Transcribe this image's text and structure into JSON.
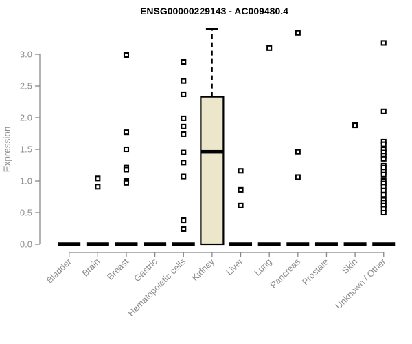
{
  "title": "ENSG00000229143 - AC009480.4",
  "colors": {
    "background": "#ffffff",
    "title_text": "#000000",
    "axis_line": "#888888",
    "axis_label_text": "#8c8c8c",
    "box_fill": "#ece7cb",
    "box_border": "#000000",
    "median_line": "#000000",
    "zero_dash": "#000000",
    "point_border": "#000000",
    "point_fill": "#ffffff"
  },
  "chart_data": {
    "type": "boxplot",
    "title": "ENSG00000229143 - AC009480.4",
    "xlabel": "",
    "ylabel": "Expression",
    "ylim": [
      0.0,
      3.4
    ],
    "yticks": [
      0.0,
      0.5,
      1.0,
      1.5,
      2.0,
      2.5,
      3.0
    ],
    "grid": false,
    "legend": "none",
    "categories": [
      "Bladder",
      "Brain",
      "Breast",
      "Gastric",
      "Hematopoietic cells",
      "Kidney",
      "Liver",
      "Lung",
      "Pancreas",
      "Prostate",
      "Skin",
      "Unknown / Other"
    ],
    "series": [
      {
        "label": "Bladder",
        "box": {
          "q1": 0,
          "median": 0,
          "q3": 0,
          "whisker_low": 0,
          "whisker_high": 0
        },
        "points": []
      },
      {
        "label": "Brain",
        "box": {
          "q1": 0,
          "median": 0,
          "q3": 0,
          "whisker_low": 0,
          "whisker_high": 0
        },
        "points": [
          1.04,
          0.91
        ]
      },
      {
        "label": "Breast",
        "box": {
          "q1": 0,
          "median": 0,
          "q3": 0,
          "whisker_low": 0,
          "whisker_high": 0
        },
        "points": [
          2.99,
          1.77,
          1.5,
          1.21,
          1.18,
          1.0,
          0.97
        ]
      },
      {
        "label": "Gastric",
        "box": {
          "q1": 0,
          "median": 0,
          "q3": 0,
          "whisker_low": 0,
          "whisker_high": 0
        },
        "points": []
      },
      {
        "label": "Hematopoietic cells",
        "box": {
          "q1": 0,
          "median": 0,
          "q3": 0,
          "whisker_low": 0,
          "whisker_high": 0
        },
        "points": [
          2.88,
          2.58,
          2.37,
          1.99,
          1.86,
          1.74,
          1.45,
          1.29,
          1.07,
          0.38,
          0.24
        ]
      },
      {
        "label": "Kidney",
        "box": {
          "q1": 0,
          "median": 1.46,
          "q3": 2.33,
          "whisker_low": 0,
          "whisker_high": 3.4
        },
        "points": []
      },
      {
        "label": "Liver",
        "box": {
          "q1": 0,
          "median": 0,
          "q3": 0,
          "whisker_low": 0,
          "whisker_high": 0
        },
        "points": [
          1.16,
          0.86,
          0.61
        ]
      },
      {
        "label": "Lung",
        "box": {
          "q1": 0,
          "median": 0,
          "q3": 0,
          "whisker_low": 0,
          "whisker_high": 0
        },
        "points": [
          3.1
        ]
      },
      {
        "label": "Pancreas",
        "box": {
          "q1": 0,
          "median": 0,
          "q3": 0,
          "whisker_low": 0,
          "whisker_high": 0
        },
        "points": [
          3.34,
          1.46,
          1.06
        ]
      },
      {
        "label": "Prostate",
        "box": {
          "q1": 0,
          "median": 0,
          "q3": 0,
          "whisker_low": 0,
          "whisker_high": 0
        },
        "points": []
      },
      {
        "label": "Skin",
        "box": {
          "q1": 0,
          "median": 0,
          "q3": 0,
          "whisker_low": 0,
          "whisker_high": 0
        },
        "points": [
          1.88
        ]
      },
      {
        "label": "Unknown / Other",
        "box": {
          "q1": 0,
          "median": 0,
          "q3": 0,
          "whisker_low": 0,
          "whisker_high": 0
        },
        "points": [
          3.18,
          2.1,
          1.62,
          1.58,
          1.5,
          1.45,
          1.4,
          1.35,
          1.24,
          1.21,
          1.15,
          1.1,
          1.0,
          0.96,
          0.91,
          0.85,
          0.78,
          0.7,
          0.66,
          0.61,
          0.56,
          0.5
        ]
      }
    ]
  }
}
